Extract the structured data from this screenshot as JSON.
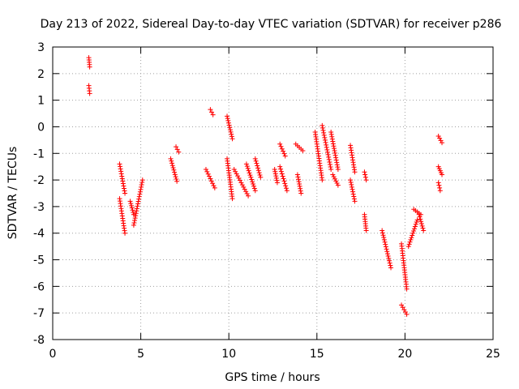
{
  "chart_data": {
    "type": "scatter",
    "title": "Day 213 of 2022, Sidereal Day-to-day VTEC variation (SDTVAR) for receiver p286",
    "xlabel": "GPS time / hours",
    "ylabel": "SDTVAR / TECUs",
    "xlim": [
      0,
      25
    ],
    "ylim": [
      -8,
      3
    ],
    "xticks": [
      0,
      5,
      10,
      15,
      20,
      25
    ],
    "yticks": [
      3,
      2,
      1,
      0,
      -1,
      -2,
      -3,
      -4,
      -5,
      -6,
      -7,
      -8
    ],
    "grid": true,
    "marker": "+",
    "series": [
      {
        "name": "SDTVAR",
        "color": "#ff0000",
        "segments": [
          {
            "x": [
              2.05,
              2.1
            ],
            "y": [
              2.6,
              2.25
            ]
          },
          {
            "x": [
              2.05,
              2.1
            ],
            "y": [
              1.55,
              1.25
            ]
          },
          {
            "x": [
              3.8,
              4.1
            ],
            "y": [
              -1.4,
              -2.5
            ]
          },
          {
            "x": [
              3.8,
              4.1
            ],
            "y": [
              -2.7,
              -4.0
            ]
          },
          {
            "x": [
              4.4,
              4.6
            ],
            "y": [
              -2.8,
              -3.3
            ]
          },
          {
            "x": [
              4.6,
              5.1
            ],
            "y": [
              -3.7,
              -2.0
            ]
          },
          {
            "x": [
              6.7,
              7.05
            ],
            "y": [
              -1.2,
              -2.05
            ]
          },
          {
            "x": [
              7.0,
              7.15
            ],
            "y": [
              -0.75,
              -0.95
            ]
          },
          {
            "x": [
              8.7,
              9.2
            ],
            "y": [
              -1.6,
              -2.3
            ]
          },
          {
            "x": [
              8.95,
              9.1
            ],
            "y": [
              0.65,
              0.45
            ]
          },
          {
            "x": [
              9.9,
              10.2
            ],
            "y": [
              0.4,
              -0.45
            ]
          },
          {
            "x": [
              9.9,
              10.2
            ],
            "y": [
              -1.2,
              -2.7
            ]
          },
          {
            "x": [
              10.3,
              11.1
            ],
            "y": [
              -1.6,
              -2.6
            ]
          },
          {
            "x": [
              11.0,
              11.5
            ],
            "y": [
              -1.4,
              -2.4
            ]
          },
          {
            "x": [
              11.5,
              11.8
            ],
            "y": [
              -1.2,
              -1.9
            ]
          },
          {
            "x": [
              12.6,
              12.75
            ],
            "y": [
              -1.6,
              -2.1
            ]
          },
          {
            "x": [
              12.9,
              13.2
            ],
            "y": [
              -0.65,
              -1.1
            ]
          },
          {
            "x": [
              12.9,
              13.3
            ],
            "y": [
              -1.5,
              -2.4
            ]
          },
          {
            "x": [
              13.8,
              14.2
            ],
            "y": [
              -0.65,
              -0.9
            ]
          },
          {
            "x": [
              13.9,
              14.1
            ],
            "y": [
              -1.8,
              -2.5
            ]
          },
          {
            "x": [
              14.9,
              15.3
            ],
            "y": [
              -0.2,
              -2.0
            ]
          },
          {
            "x": [
              15.3,
              15.8
            ],
            "y": [
              0.05,
              -1.6
            ]
          },
          {
            "x": [
              15.8,
              16.2
            ],
            "y": [
              -0.2,
              -1.6
            ]
          },
          {
            "x": [
              15.9,
              16.2
            ],
            "y": [
              -1.8,
              -2.2
            ]
          },
          {
            "x": [
              16.9,
              17.15
            ],
            "y": [
              -0.7,
              -1.7
            ]
          },
          {
            "x": [
              16.9,
              17.15
            ],
            "y": [
              -2.0,
              -2.8
            ]
          },
          {
            "x": [
              17.7,
              17.8
            ],
            "y": [
              -1.7,
              -2.0
            ]
          },
          {
            "x": [
              17.7,
              17.8
            ],
            "y": [
              -3.3,
              -3.9
            ]
          },
          {
            "x": [
              18.7,
              19.2
            ],
            "y": [
              -3.9,
              -5.3
            ]
          },
          {
            "x": [
              19.8,
              20.1
            ],
            "y": [
              -4.4,
              -6.1
            ]
          },
          {
            "x": [
              19.8,
              20.1
            ],
            "y": [
              -6.7,
              -7.05
            ]
          },
          {
            "x": [
              20.2,
              20.7
            ],
            "y": [
              -4.5,
              -3.5
            ]
          },
          {
            "x": [
              20.5,
              20.9
            ],
            "y": [
              -3.1,
              -3.3
            ]
          },
          {
            "x": [
              20.8,
              21.05
            ],
            "y": [
              -3.3,
              -3.9
            ]
          },
          {
            "x": [
              21.9,
              22.1
            ],
            "y": [
              -0.35,
              -0.6
            ]
          },
          {
            "x": [
              21.9,
              22.1
            ],
            "y": [
              -1.5,
              -1.8
            ]
          },
          {
            "x": [
              21.9,
              22.0
            ],
            "y": [
              -2.1,
              -2.4
            ]
          }
        ]
      }
    ]
  }
}
